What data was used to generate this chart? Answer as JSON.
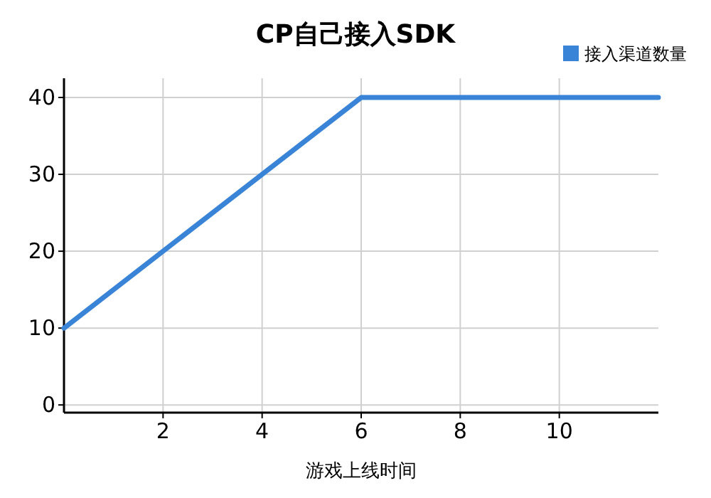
{
  "chart_data": {
    "type": "line",
    "title": "CP自己接入SDK",
    "xlabel": "游戏上线时间",
    "x": [
      0,
      6,
      12
    ],
    "series": [
      {
        "name": "接入渠道数量",
        "color": "#3a84d8",
        "values": [
          10,
          40,
          40
        ]
      }
    ],
    "xlim": [
      0,
      12
    ],
    "ylim": [
      -1,
      42.5
    ],
    "xticks": [
      2,
      4,
      6,
      8,
      10
    ],
    "yticks": [
      0,
      10,
      20,
      30,
      40
    ],
    "grid": true,
    "legend": "top right"
  }
}
